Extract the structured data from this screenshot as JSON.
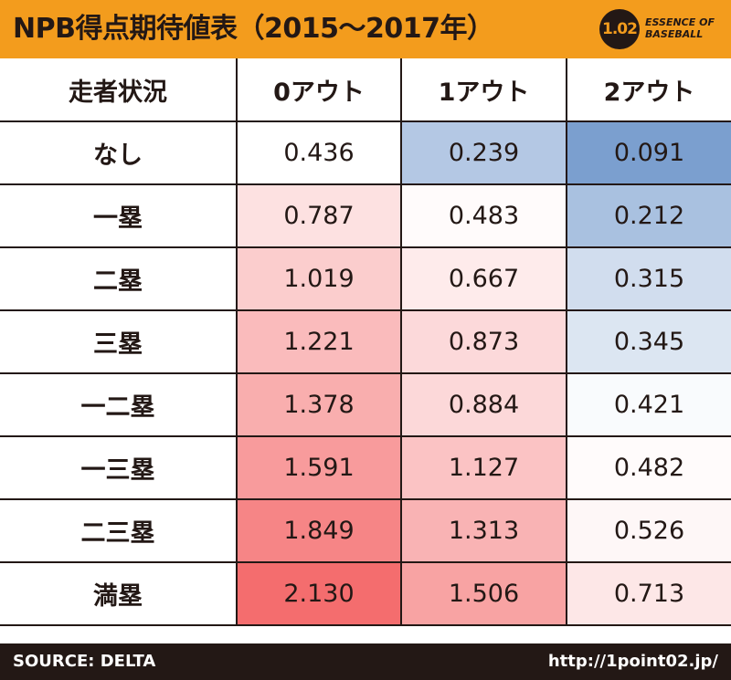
{
  "header": {
    "title": "NPB得点期待値表（2015〜2017年）",
    "logo": {
      "badge": "1.02",
      "line1": "ESSENCE OF",
      "line2": "BASEBALL"
    }
  },
  "colors": {
    "header_bg": "#f39c1d",
    "footer_bg": "#231815",
    "high": "#f46d6e",
    "low": "#7b9fcf",
    "neutral": "#ffffff"
  },
  "chart_data": {
    "type": "table",
    "title": "NPB得点期待値表（2015〜2017年）",
    "columns": [
      "走者状況",
      "0アウト",
      "1アウト",
      "2アウト"
    ],
    "rows": [
      {
        "label": "なし",
        "values": [
          "0.436",
          "0.239",
          "0.091"
        ]
      },
      {
        "label": "一塁",
        "values": [
          "0.787",
          "0.483",
          "0.212"
        ]
      },
      {
        "label": "二塁",
        "values": [
          "1.019",
          "0.667",
          "0.315"
        ]
      },
      {
        "label": "三塁",
        "values": [
          "1.221",
          "0.873",
          "0.345"
        ]
      },
      {
        "label": "一二塁",
        "values": [
          "1.378",
          "0.884",
          "0.421"
        ]
      },
      {
        "label": "一三塁",
        "values": [
          "1.591",
          "1.127",
          "0.482"
        ]
      },
      {
        "label": "二三塁",
        "values": [
          "1.849",
          "1.313",
          "0.526"
        ]
      },
      {
        "label": "満塁",
        "values": [
          "2.130",
          "1.506",
          "0.713"
        ]
      }
    ]
  },
  "footer": {
    "source": "SOURCE: DELTA",
    "url": "http://1point02.jp/"
  }
}
